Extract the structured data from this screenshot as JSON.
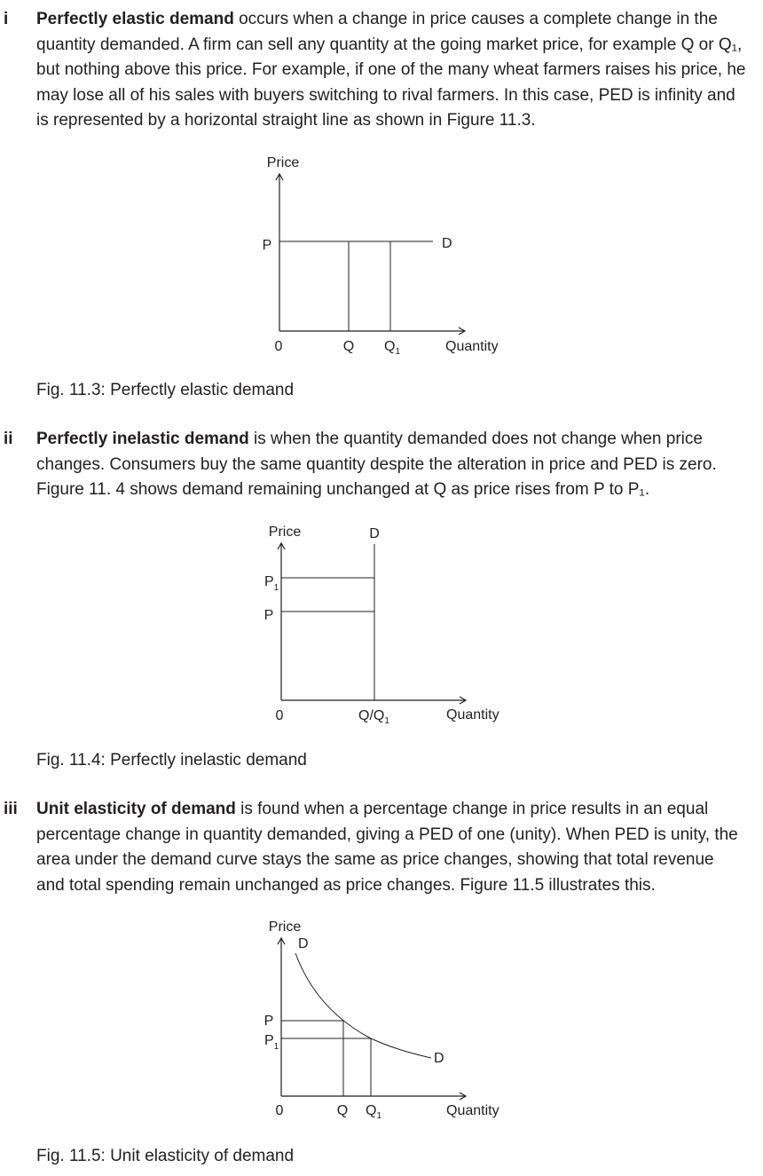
{
  "sections": [
    {
      "marker": "i",
      "term": "Perfectly elastic demand",
      "body": " occurs when a change in price causes a complete change in the quantity demanded. A firm can sell any quantity at the going market price, for example Q or Q₁, but nothing above this price. For example, if one of the many wheat farmers raises his price, he may lose all of his sales with buyers switching to rival farmers. In this case, PED is infinity and is represented by a horizontal straight line as shown in Figure 11.3."
    },
    {
      "marker": "ii",
      "term": "Perfectly inelastic demand",
      "body": " is when the quantity demanded does not change when price changes. Consumers buy the same quantity despite the alteration in price and PED is zero. Figure 11. 4 shows demand remaining unchanged at Q as price rises from P to P₁."
    },
    {
      "marker": "iii",
      "term": "Unit elasticity of demand",
      "body": " is found when a percentage change in price results in an equal percentage change in quantity demanded, giving a PED of one (unity). When PED is unity, the area under the demand curve stays the same as price changes, showing that total revenue and total spending remain unchanged as price changes. Figure 11.5 illustrates this."
    }
  ],
  "figures": {
    "fig1": {
      "caption": "Fig. 11.3: Perfectly elastic demand",
      "y_axis": "Price",
      "x_axis": "Quantity",
      "origin": "0",
      "price_label": "P",
      "q_label": "Q",
      "q1_label": "Q",
      "q1_sub": "1",
      "demand_label": "D"
    },
    "fig2": {
      "caption": "Fig. 11.4: Perfectly inelastic demand",
      "y_axis": "Price",
      "x_axis": "Quantity",
      "origin": "0",
      "p1_label": "P",
      "p1_sub": "1",
      "p_label": "P",
      "q_label": "Q/Q",
      "q_sub": "1",
      "demand_label": "D"
    },
    "fig3": {
      "caption": "Fig. 11.5: Unit elasticity of demand",
      "y_axis": "Price",
      "x_axis": "Quantity",
      "origin": "0",
      "p_label": "P",
      "p1_label": "P",
      "p1_sub": "1",
      "q_label": "Q",
      "q1_label": "Q",
      "q1_sub": "1",
      "demand_top_label": "D",
      "demand_end_label": "D"
    }
  }
}
